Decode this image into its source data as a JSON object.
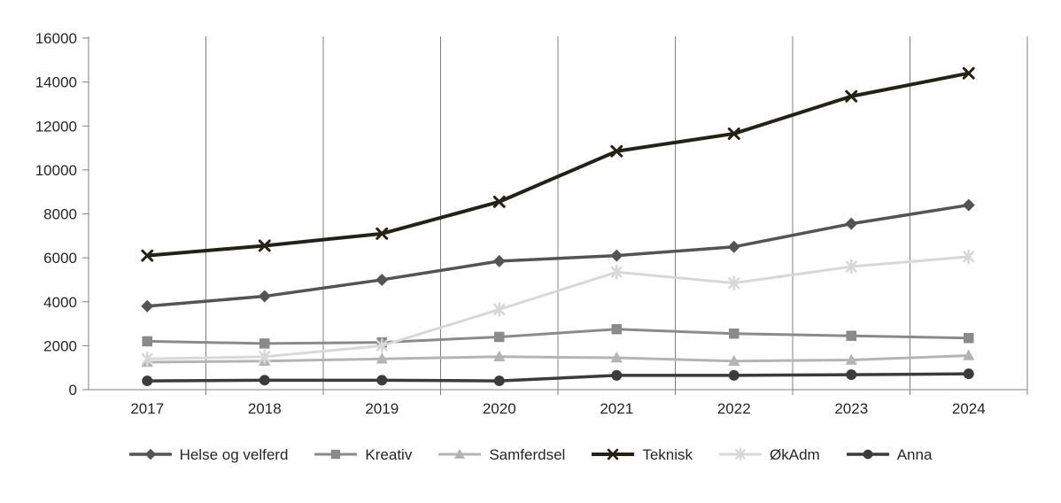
{
  "chart_data": {
    "type": "line",
    "title": "",
    "xlabel": "",
    "ylabel": "",
    "categories": [
      "2017",
      "2018",
      "2019",
      "2020",
      "2021",
      "2022",
      "2023",
      "2024"
    ],
    "series": [
      {
        "name": "Helse og velferd",
        "marker": "diamond",
        "color": "#545454",
        "width": 3.5,
        "values": [
          3800,
          4250,
          5000,
          5850,
          6100,
          6500,
          7550,
          8400
        ]
      },
      {
        "name": "Kreativ",
        "marker": "square",
        "color": "#8a8a8a",
        "width": 3,
        "values": [
          2200,
          2100,
          2150,
          2400,
          2750,
          2550,
          2450,
          2350
        ]
      },
      {
        "name": "Samferdsel",
        "marker": "triangle",
        "color": "#b4b4b4",
        "width": 3,
        "values": [
          1250,
          1300,
          1400,
          1500,
          1450,
          1300,
          1350,
          1550
        ]
      },
      {
        "name": "Teknisk",
        "marker": "x",
        "color": "#262115",
        "width": 4,
        "values": [
          6100,
          6550,
          7100,
          8550,
          10850,
          11650,
          13350,
          14400
        ]
      },
      {
        "name": "ØkAdm",
        "marker": "asterisk",
        "color": "#d8d8d8",
        "width": 3,
        "values": [
          1400,
          1500,
          2000,
          3650,
          5350,
          4850,
          5600,
          6050
        ]
      },
      {
        "name": "Anna",
        "marker": "circle",
        "color": "#3b3b3b",
        "width": 3.5,
        "values": [
          400,
          430,
          430,
          400,
          650,
          650,
          680,
          720
        ]
      }
    ],
    "ylim": [
      0,
      16000
    ],
    "ytick_step": 2000,
    "grid": "vertical",
    "legend_position": "bottom",
    "axis_color": "#808080",
    "text_color": "#262626"
  }
}
